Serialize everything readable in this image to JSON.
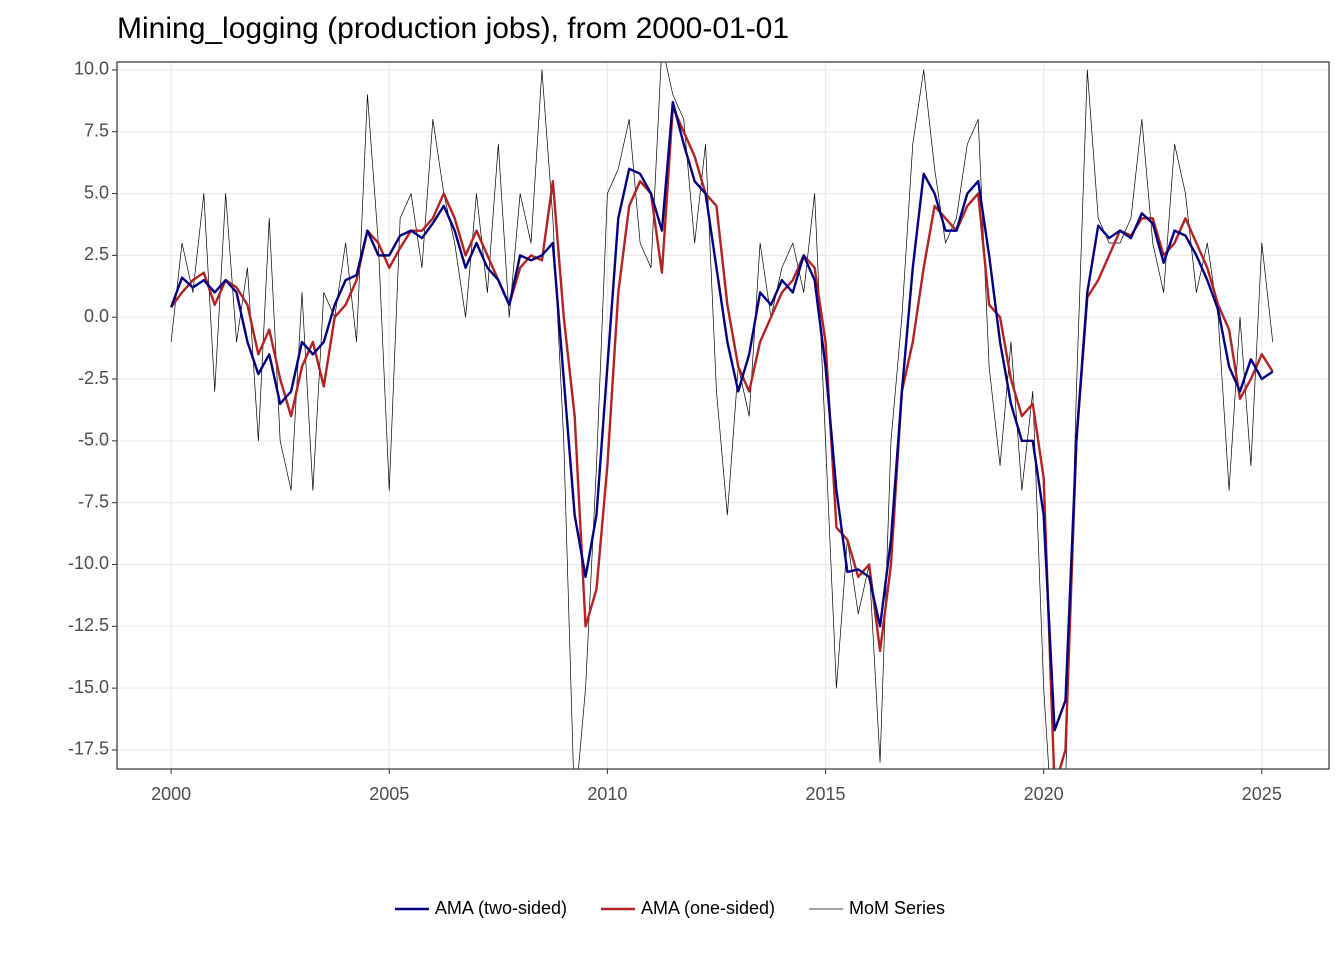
{
  "chart_data": {
    "type": "line",
    "title": "Mining_logging (production jobs), from 2000-01-01",
    "x": [
      2000,
      2000.25,
      2000.5,
      2000.75,
      2001,
      2001.25,
      2001.5,
      2001.75,
      2002,
      2002.25,
      2002.5,
      2002.75,
      2003,
      2003.25,
      2003.5,
      2003.75,
      2004,
      2004.25,
      2004.5,
      2004.75,
      2005,
      2005.25,
      2005.5,
      2005.75,
      2006,
      2006.25,
      2006.5,
      2006.75,
      2007,
      2007.25,
      2007.5,
      2007.75,
      2008,
      2008.25,
      2008.5,
      2008.75,
      2009,
      2009.25,
      2009.5,
      2009.75,
      2010,
      2010.25,
      2010.5,
      2010.75,
      2011,
      2011.25,
      2011.5,
      2011.75,
      2012,
      2012.25,
      2012.5,
      2012.75,
      2013,
      2013.25,
      2013.5,
      2013.75,
      2014,
      2014.25,
      2014.5,
      2014.75,
      2015,
      2015.25,
      2015.5,
      2015.75,
      2016,
      2016.25,
      2016.5,
      2016.75,
      2017,
      2017.25,
      2017.5,
      2017.75,
      2018,
      2018.25,
      2018.5,
      2018.75,
      2019,
      2019.25,
      2019.5,
      2019.75,
      2020,
      2020.25,
      2020.5,
      2020.75,
      2021,
      2021.25,
      2021.5,
      2021.75,
      2022,
      2022.25,
      2022.5,
      2022.75,
      2023,
      2023.25,
      2023.5,
      2023.75,
      2024,
      2024.25,
      2024.5,
      2024.75,
      2025,
      2025.25
    ],
    "series": [
      {
        "name": "AMA (two-sided)",
        "color": "#000080",
        "values": [
          0.4,
          1.6,
          1.2,
          1.5,
          1.0,
          1.5,
          1.0,
          -1.0,
          -2.3,
          -1.5,
          -3.5,
          -3.0,
          -1.0,
          -1.5,
          -1.0,
          0.5,
          1.5,
          1.7,
          3.5,
          2.5,
          2.5,
          3.3,
          3.5,
          3.2,
          3.8,
          4.5,
          3.5,
          2.0,
          3.0,
          2.0,
          1.5,
          0.5,
          2.5,
          2.3,
          2.5,
          3.0,
          -2.5,
          -8.0,
          -10.5,
          -8.0,
          -2.0,
          4.0,
          6.0,
          5.8,
          5.0,
          3.5,
          8.7,
          7.0,
          5.5,
          5.0,
          2.0,
          -1.0,
          -3.0,
          -1.5,
          1.0,
          0.5,
          1.5,
          1.0,
          2.5,
          1.5,
          -2.0,
          -7.0,
          -10.3,
          -10.2,
          -10.5,
          -12.5,
          -9.0,
          -3.0,
          2.0,
          5.8,
          5.0,
          3.5,
          3.5,
          5.0,
          5.5,
          2.5,
          -1.0,
          -3.5,
          -5.0,
          -5.0,
          -8.0,
          -16.7,
          -15.5,
          -5.0,
          1.0,
          3.7,
          3.2,
          3.5,
          3.2,
          4.2,
          3.8,
          2.2,
          3.5,
          3.3,
          2.5,
          1.5,
          0.3,
          -2.0,
          -3.0,
          -1.7,
          -2.5,
          -2.2
        ]
      },
      {
        "name": "AMA (one-sided)",
        "color": "#b22222",
        "values": [
          0.4,
          1.0,
          1.5,
          1.8,
          0.5,
          1.5,
          1.2,
          0.5,
          -1.5,
          -0.5,
          -2.5,
          -4.0,
          -2.0,
          -1.0,
          -2.8,
          0.0,
          0.5,
          1.5,
          3.5,
          3.0,
          2.0,
          2.8,
          3.5,
          3.5,
          4.0,
          5.0,
          4.0,
          2.5,
          3.5,
          2.5,
          1.5,
          0.5,
          2.0,
          2.5,
          2.3,
          5.5,
          0.0,
          -4.0,
          -12.5,
          -11.0,
          -6.0,
          1.0,
          4.5,
          5.5,
          5.0,
          1.8,
          8.5,
          7.5,
          6.5,
          5.0,
          4.5,
          0.5,
          -2.0,
          -3.0,
          -1.0,
          0.0,
          1.0,
          1.5,
          2.5,
          2.0,
          -1.0,
          -8.5,
          -9.0,
          -10.5,
          -10.0,
          -13.5,
          -10.0,
          -3.0,
          -1.0,
          2.0,
          4.5,
          4.0,
          3.5,
          4.5,
          5.0,
          0.5,
          0.0,
          -2.5,
          -4.0,
          -3.5,
          -6.5,
          -19.0,
          -17.5,
          -5.0,
          0.8,
          1.5,
          2.5,
          3.5,
          3.3,
          4.0,
          4.0,
          2.5,
          3.0,
          4.0,
          3.0,
          2.0,
          0.5,
          -0.5,
          -3.3,
          -2.5,
          -1.5,
          -2.2
        ]
      },
      {
        "name": "MoM Series",
        "color": "#000000",
        "values": [
          -1,
          3,
          1,
          5,
          -3,
          5,
          -1,
          2,
          -5,
          4,
          -5,
          -7,
          1,
          -7,
          1,
          0,
          3,
          -1,
          9,
          3,
          -7,
          4,
          5,
          2,
          8,
          5,
          3,
          0,
          5,
          1,
          7,
          0,
          5,
          3,
          10,
          4,
          -5,
          -20,
          -15,
          -6,
          5,
          6,
          8,
          3,
          2,
          11,
          9,
          8,
          3,
          7,
          -3,
          -8,
          -2,
          -4,
          3,
          0,
          2,
          3,
          1,
          5,
          -5,
          -15,
          -9,
          -12,
          -10,
          -18,
          -5,
          0,
          7,
          10,
          6,
          3,
          4,
          7,
          8,
          -2,
          -6,
          -1,
          -7,
          -3,
          -15,
          -22,
          -19,
          -3,
          10,
          4,
          3,
          3,
          4,
          8,
          3,
          1,
          7,
          5,
          1,
          3,
          0,
          -7,
          0,
          -6,
          3,
          -1
        ]
      }
    ],
    "xlim": [
      1998.76,
      2026.54
    ],
    "xticks": [
      2000,
      2005,
      2010,
      2015,
      2020,
      2025
    ],
    "ylim": [
      -18.27,
      10.32
    ],
    "yticks": [
      {
        "value": 10,
        "label": "10.0"
      },
      7.5,
      {
        "value": 5,
        "label": "5.0"
      },
      2.5,
      {
        "value": 0,
        "label": "0.0"
      },
      -2.5,
      {
        "value": -5,
        "label": "-5.0"
      },
      -7.5,
      {
        "value": -10,
        "label": "-10.0"
      },
      -12.5,
      {
        "value": -15,
        "label": "-15.0"
      },
      -17.5
    ],
    "grid": true,
    "legend": "bottom"
  }
}
